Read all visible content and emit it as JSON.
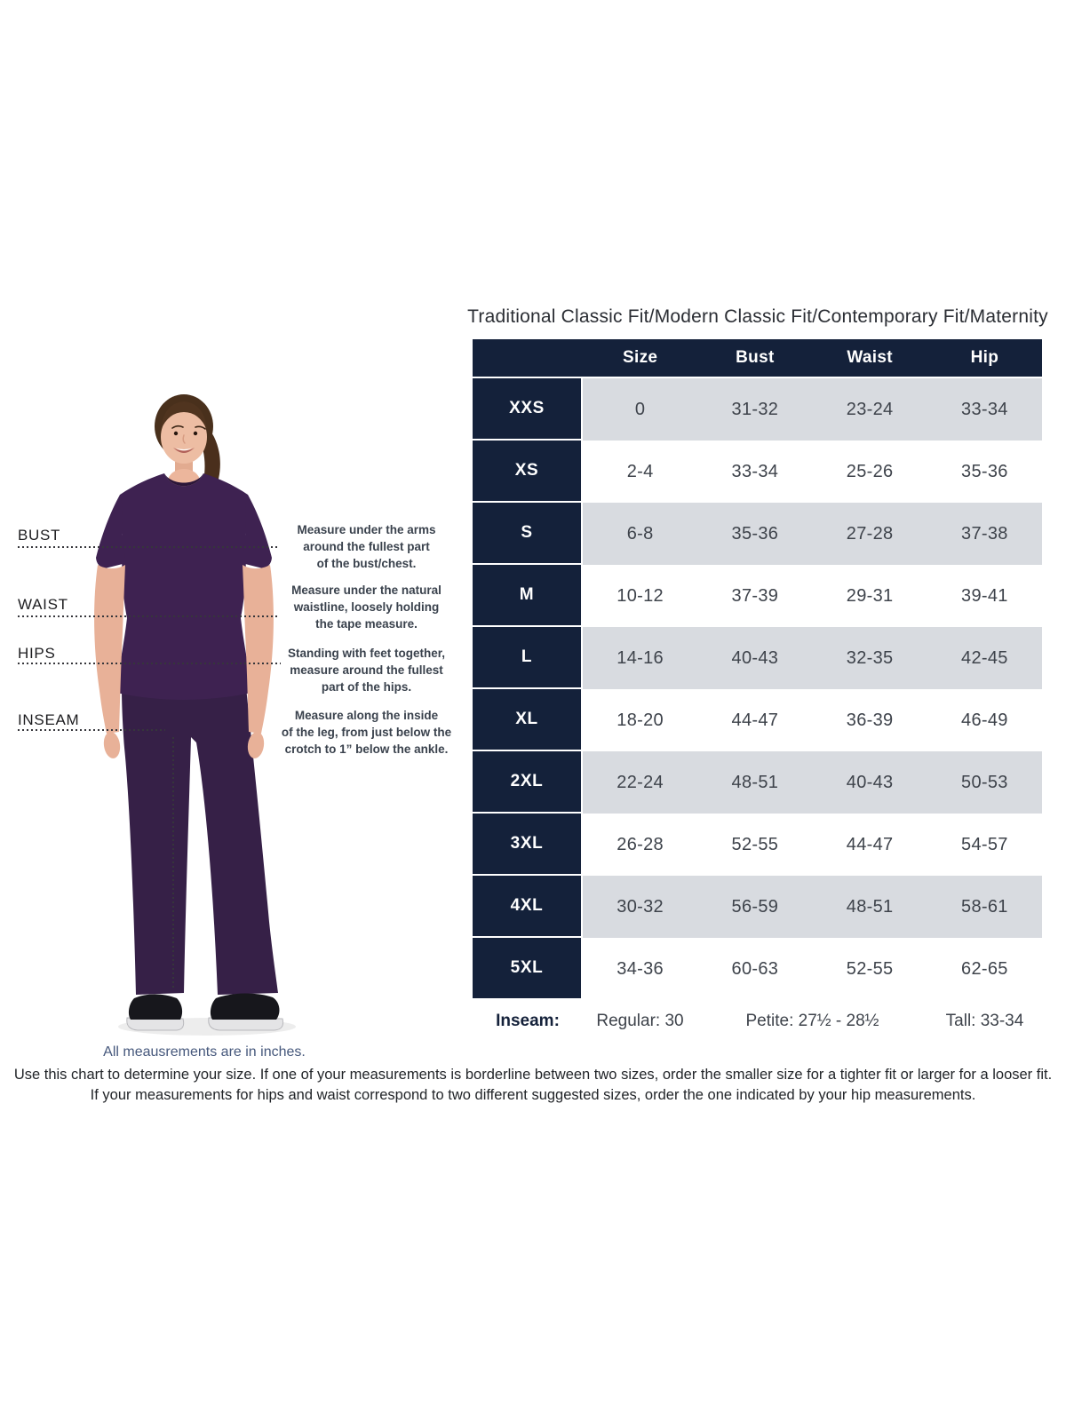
{
  "title": "Traditional Classic Fit/Modern Classic Fit/Contemporary Fit/Maternity",
  "chart_data": {
    "type": "table",
    "title": "Traditional Classic Fit/Modern Classic Fit/Contemporary Fit/Maternity",
    "columns": [
      "Size",
      "Bust",
      "Waist",
      "Hip"
    ],
    "rows": [
      {
        "size": "XXS",
        "values": [
          "0",
          "31-32",
          "23-24",
          "33-34"
        ]
      },
      {
        "size": "XS",
        "values": [
          "2-4",
          "33-34",
          "25-26",
          "35-36"
        ]
      },
      {
        "size": "S",
        "values": [
          "6-8",
          "35-36",
          "27-28",
          "37-38"
        ]
      },
      {
        "size": "M",
        "values": [
          "10-12",
          "37-39",
          "29-31",
          "39-41"
        ]
      },
      {
        "size": "L",
        "values": [
          "14-16",
          "40-43",
          "32-35",
          "42-45"
        ]
      },
      {
        "size": "XL",
        "values": [
          "18-20",
          "44-47",
          "36-39",
          "46-49"
        ]
      },
      {
        "size": "2XL",
        "values": [
          "22-24",
          "48-51",
          "40-43",
          "50-53"
        ]
      },
      {
        "size": "3XL",
        "values": [
          "26-28",
          "52-55",
          "44-47",
          "54-57"
        ]
      },
      {
        "size": "4XL",
        "values": [
          "30-32",
          "56-59",
          "48-51",
          "58-61"
        ]
      },
      {
        "size": "5XL",
        "values": [
          "34-36",
          "60-63",
          "52-55",
          "62-65"
        ]
      }
    ],
    "inseam_row": {
      "label": "Inseam:",
      "regular": "Regular: 30",
      "petite": "Petite: 27½ - 28½",
      "tall": "Tall: 33-34"
    },
    "layout": {
      "zebra_colors": [
        "#d8dbe0",
        "#ffffff"
      ],
      "header_color": "#14213a"
    }
  },
  "diagram": {
    "measurement_labels": [
      {
        "name": "BUST"
      },
      {
        "name": "WAIST"
      },
      {
        "name": "HIPS"
      },
      {
        "name": "INSEAM"
      }
    ],
    "instructions": [
      {
        "text": "Measure under the arms\naround the fullest part\nof the bust/chest."
      },
      {
        "text": "Measure under the natural\nwaistline, loosely holding\nthe tape measure."
      },
      {
        "text": "Standing with feet together,\nmeasure around the fullest\npart of the hips."
      },
      {
        "text": "Measure along the inside\nof the leg, from just below the\ncrotch to 1” below the ankle."
      }
    ],
    "caption": "All meausrements are in inches."
  },
  "footer": {
    "line1": "Use this chart to determine your size. If one of your measurements is borderline between two sizes, order the smaller size for a tighter fit or larger for a looser fit.",
    "line2": "If your measurements for hips and waist correspond to two different suggested sizes, order the one indicated by your hip measurements."
  },
  "colors": {
    "navy": "#14213a",
    "row_gray": "#d8dbe0",
    "scrub_purple": "#3e2251",
    "pants_purple": "#362047",
    "note_blue": "#46587c"
  }
}
